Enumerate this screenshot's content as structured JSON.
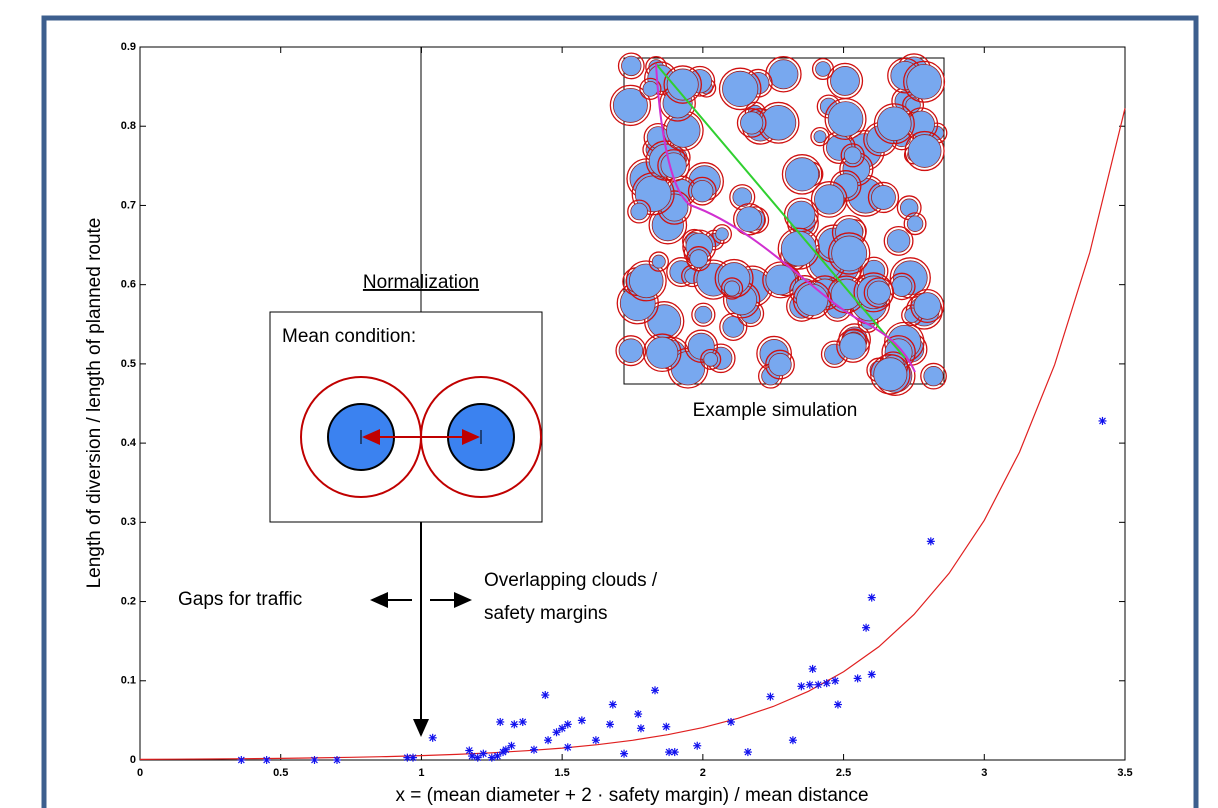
{
  "chart_data": {
    "type": "scatter",
    "xlabel": "x = (mean diameter + 2 · safety margin) / mean distance",
    "ylabel": "Length of diversion / length of planned route",
    "xlim": [
      0,
      3.5
    ],
    "xticks": [
      0,
      0.5,
      1,
      1.5,
      2,
      2.5,
      3,
      3.5
    ],
    "ylim": [
      0,
      0.9
    ],
    "yticks": [
      0,
      0.1,
      0.2,
      0.3,
      0.4,
      0.5,
      0.6,
      0.7,
      0.8,
      0.9
    ],
    "points": {
      "color": "#1010ee",
      "x": [
        0.36,
        0.45,
        0.62,
        0.7,
        0.95,
        0.97,
        1.04,
        1.17,
        1.18,
        1.2,
        1.22,
        1.25,
        1.27,
        1.28,
        1.29,
        1.3,
        1.32,
        1.33,
        1.36,
        1.4,
        1.44,
        1.45,
        1.48,
        1.5,
        1.52,
        1.52,
        1.57,
        1.62,
        1.67,
        1.68,
        1.72,
        1.77,
        1.78,
        1.83,
        1.87,
        1.88,
        1.9,
        1.98,
        2.1,
        2.16,
        2.24,
        2.32,
        2.35,
        2.38,
        2.39,
        2.41,
        2.44,
        2.47,
        2.48,
        2.55,
        2.58,
        2.6,
        2.6,
        2.81,
        3.42
      ],
      "y": [
        0.0,
        0.0,
        0.0,
        0.0,
        0.003,
        0.003,
        0.028,
        0.012,
        0.005,
        0.003,
        0.008,
        0.003,
        0.005,
        0.048,
        0.01,
        0.013,
        0.018,
        0.045,
        0.048,
        0.013,
        0.082,
        0.025,
        0.035,
        0.04,
        0.045,
        0.016,
        0.05,
        0.025,
        0.045,
        0.07,
        0.008,
        0.058,
        0.04,
        0.088,
        0.042,
        0.01,
        0.01,
        0.018,
        0.048,
        0.01,
        0.08,
        0.025,
        0.093,
        0.095,
        0.115,
        0.095,
        0.097,
        0.1,
        0.07,
        0.103,
        0.167,
        0.108,
        0.205,
        0.276,
        0.428
      ]
    },
    "fit": {
      "color": "#e02020",
      "x": [
        0,
        0.125,
        0.25,
        0.375,
        0.5,
        0.625,
        0.75,
        0.875,
        1,
        1.125,
        1.25,
        1.375,
        1.5,
        1.625,
        1.75,
        1.875,
        2,
        2.125,
        2.25,
        2.375,
        2.5,
        2.625,
        2.75,
        2.875,
        3,
        3.125,
        3.25,
        3.375,
        3.5
      ],
      "y": [
        0.00075,
        0.00096,
        0.00124,
        0.00159,
        0.00204,
        0.00262,
        0.00336,
        0.00432,
        0.00554,
        0.00712,
        0.00914,
        0.01173,
        0.01506,
        0.01934,
        0.02484,
        0.03189,
        0.04095,
        0.05258,
        0.0675,
        0.0867,
        0.1113,
        0.1429,
        0.1835,
        0.2357,
        0.3026,
        0.3886,
        0.4989,
        0.6406,
        0.8226
      ]
    },
    "annotations": {
      "normalization": "Normalization",
      "mean_condition": "Mean condition:",
      "gaps": "Gaps for traffic",
      "overlap": [
        "Overlapping clouds /",
        "safety margins"
      ],
      "inset_caption": "Example simulation"
    }
  }
}
